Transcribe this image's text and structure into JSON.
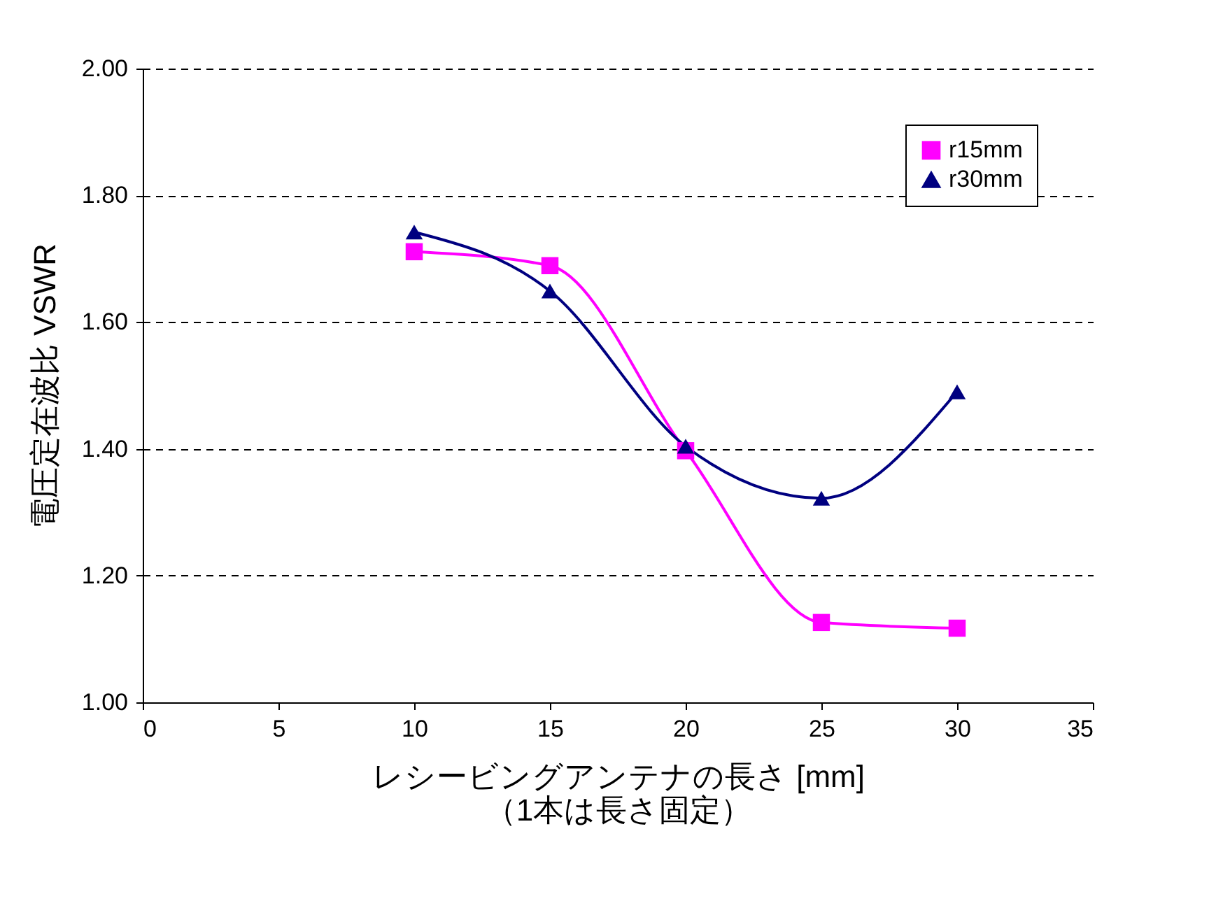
{
  "chart_data": {
    "type": "line",
    "xlabel": "レシービングアンテナの長さ [mm]\n（1本は長さ固定）",
    "ylabel": "電圧定在波比 VSWR",
    "x": [
      10,
      15,
      20,
      25,
      30
    ],
    "series": [
      {
        "name": "r15mm",
        "color": "#ff00ff",
        "marker": "square",
        "values": [
          1.711,
          1.689,
          1.397,
          1.126,
          1.117
        ]
      },
      {
        "name": "r30mm",
        "color": "#000080",
        "marker": "triangle",
        "values": [
          1.742,
          1.649,
          1.404,
          1.322,
          1.49
        ]
      }
    ],
    "xlim": [
      0,
      35
    ],
    "xticks": [
      0,
      5,
      10,
      15,
      20,
      25,
      30,
      35
    ],
    "ylim": [
      1,
      2
    ],
    "yticks": [
      {
        "value": 1,
        "label": "1.00"
      },
      {
        "value": 1.2,
        "label": "1.20"
      },
      {
        "value": 1.4,
        "label": "1.40"
      },
      {
        "value": 1.6,
        "label": "1.60"
      },
      {
        "value": 1.8,
        "label": "1.80"
      },
      {
        "value": 2,
        "label": "2.00"
      }
    ],
    "grid": "y",
    "legend": "top right",
    "line_style": "solid"
  }
}
